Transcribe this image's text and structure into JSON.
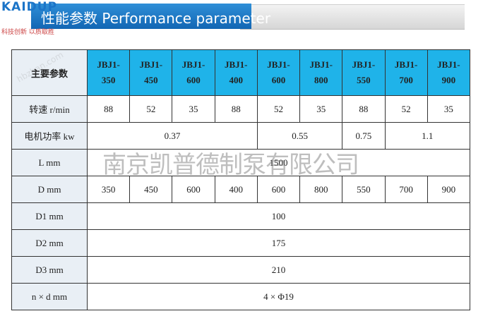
{
  "header": {
    "logo": "KAIDUP",
    "tagline": "科技创新 以质取胜",
    "title": "性能参数 Performance parameter"
  },
  "table": {
    "header": [
      "主要参数",
      "JBJ1-350",
      "JBJ1-450",
      "JBJ1-600",
      "JBJ1-400",
      "JBJ1-600",
      "JBJ1-800",
      "JBJ1-550",
      "JBJ1-700",
      "JBJ1-900"
    ],
    "rows": [
      [
        "转速 r/min",
        "88",
        "52",
        "35",
        "88",
        "52",
        "35",
        "88",
        "52",
        "35"
      ],
      [
        "电机功率 kw",
        "0.37",
        "0.55",
        "0.75",
        "1.1"
      ],
      [
        "L mm",
        "1500"
      ],
      [
        "D mm",
        "350",
        "450",
        "600",
        "400",
        "600",
        "800",
        "550",
        "700",
        "900"
      ],
      [
        "D1 mm",
        "100"
      ],
      [
        "D2 mm",
        "175"
      ],
      [
        "D3 mm",
        "210"
      ],
      [
        "n × d mm",
        "4 × Φ19"
      ]
    ]
  },
  "watermark": {
    "main": "南京凯普德制泵有限公司",
    "site": "hbzhan.com"
  }
}
